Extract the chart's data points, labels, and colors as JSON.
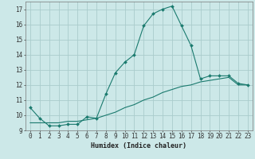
{
  "title": "",
  "xlabel": "Humidex (Indice chaleur)",
  "ylabel": "",
  "bg_color": "#cce8e8",
  "grid_color": "#aacccc",
  "line_color": "#1a7a6e",
  "xlim": [
    -0.5,
    23.5
  ],
  "ylim": [
    9,
    17.5
  ],
  "xticks": [
    0,
    1,
    2,
    3,
    4,
    5,
    6,
    7,
    8,
    9,
    10,
    11,
    12,
    13,
    14,
    15,
    16,
    17,
    18,
    19,
    20,
    21,
    22,
    23
  ],
  "yticks": [
    9,
    10,
    11,
    12,
    13,
    14,
    15,
    16,
    17
  ],
  "series1_x": [
    0,
    1,
    2,
    3,
    4,
    5,
    6,
    7,
    8,
    9,
    10,
    11,
    12,
    13,
    14,
    15,
    16,
    17,
    18,
    19,
    20,
    21,
    22,
    23
  ],
  "series1_y": [
    10.5,
    9.8,
    9.3,
    9.3,
    9.4,
    9.4,
    9.9,
    9.8,
    11.4,
    12.8,
    13.5,
    14.0,
    15.9,
    16.7,
    17.0,
    17.2,
    15.9,
    14.6,
    12.4,
    12.6,
    12.6,
    12.6,
    12.1,
    12.0
  ],
  "series2_x": [
    0,
    1,
    2,
    3,
    4,
    5,
    6,
    7,
    8,
    9,
    10,
    11,
    12,
    13,
    14,
    15,
    16,
    17,
    18,
    19,
    20,
    21,
    22,
    23
  ],
  "series2_y": [
    9.5,
    9.5,
    9.5,
    9.5,
    9.6,
    9.6,
    9.7,
    9.8,
    10.0,
    10.2,
    10.5,
    10.7,
    11.0,
    11.2,
    11.5,
    11.7,
    11.9,
    12.0,
    12.2,
    12.3,
    12.4,
    12.5,
    12.0,
    12.0
  ],
  "tick_fontsize": 5.5,
  "xlabel_fontsize": 6.0
}
